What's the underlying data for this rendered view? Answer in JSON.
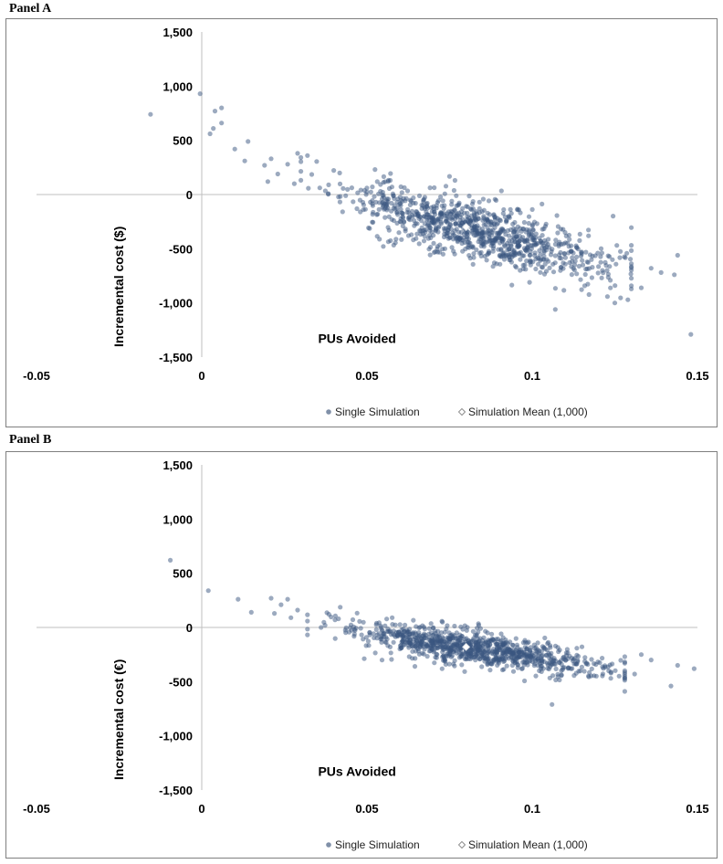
{
  "panels": [
    {
      "label": "Panel A"
    },
    {
      "label": "Panel B"
    }
  ],
  "colors": {
    "point": "#3a5680",
    "point_opacity": 0.5,
    "mean_marker": "#ffffff",
    "axis": "#bfbfbf",
    "legend_point": "#8090a8"
  },
  "chart_data": [
    {
      "type": "scatter",
      "title": "Panel A",
      "xlabel": "PUs Avoided",
      "ylabel": "Incremental cost ($)",
      "xlim": [
        -0.05,
        0.15
      ],
      "ylim": [
        -1500,
        1500
      ],
      "x_ticks": [
        -0.05,
        0,
        0.05,
        0.1,
        0.15
      ],
      "x_tick_labels": [
        "-0.05",
        "0",
        "0.05",
        "0.1",
        "0.15"
      ],
      "y_ticks": [
        1500,
        1000,
        500,
        0,
        -500,
        -1000,
        -1500
      ],
      "y_tick_labels": [
        "1,500",
        "1,000",
        "500",
        "0",
        "-500",
        "-1,000",
        "-1,500"
      ],
      "legend": [
        "Single Simulation",
        "Simulation Mean (1,000)"
      ],
      "legend_position": "bottom",
      "n_simulations": 1000,
      "mean": {
        "x": 0.08,
        "y": -300
      },
      "cloud": {
        "slope": -8200,
        "intercept": 356,
        "x_center": 0.083,
        "x_sd": 0.02,
        "x_min": 0.03,
        "x_max": 0.13,
        "noise_sd": 135,
        "seed": 11
      },
      "outliers": [
        {
          "x": -0.0155,
          "y": 740
        },
        {
          "x": -0.0005,
          "y": 930
        },
        {
          "x": 0.0025,
          "y": 560
        },
        {
          "x": 0.004,
          "y": 770
        },
        {
          "x": 0.006,
          "y": 800
        },
        {
          "x": 0.006,
          "y": 660
        },
        {
          "x": 0.0035,
          "y": 610
        },
        {
          "x": 0.01,
          "y": 420
        },
        {
          "x": 0.014,
          "y": 490
        },
        {
          "x": 0.013,
          "y": 310
        },
        {
          "x": 0.019,
          "y": 270
        },
        {
          "x": 0.021,
          "y": 330
        },
        {
          "x": 0.023,
          "y": 190
        },
        {
          "x": 0.02,
          "y": 120
        },
        {
          "x": 0.026,
          "y": 280
        },
        {
          "x": 0.028,
          "y": 100
        },
        {
          "x": 0.029,
          "y": 380
        },
        {
          "x": 0.032,
          "y": 360
        },
        {
          "x": 0.107,
          "y": -1060
        },
        {
          "x": 0.133,
          "y": -860
        },
        {
          "x": 0.136,
          "y": -680
        },
        {
          "x": 0.139,
          "y": -720
        },
        {
          "x": 0.143,
          "y": -740
        },
        {
          "x": 0.144,
          "y": -560
        },
        {
          "x": 0.148,
          "y": -1290
        },
        {
          "x": 0.125,
          "y": -1000
        }
      ]
    },
    {
      "type": "scatter",
      "title": "Panel B",
      "xlabel": "PUs Avoided",
      "ylabel": "Incremental cost (€)",
      "xlim": [
        -0.05,
        0.15
      ],
      "ylim": [
        -1500,
        1500
      ],
      "x_ticks": [
        -0.05,
        0,
        0.05,
        0.1,
        0.15
      ],
      "x_tick_labels": [
        "-0.05",
        "0",
        "0.05",
        "0.1",
        "0.15"
      ],
      "y_ticks": [
        1500,
        1000,
        500,
        0,
        -500,
        -1000,
        -1500
      ],
      "y_tick_labels": [
        "1,500",
        "1,000",
        "500",
        "0",
        "-500",
        "-1,000",
        "-1,500"
      ],
      "legend": [
        "Single Simulation",
        "Simulation Mean (1,000)"
      ],
      "legend_position": "bottom",
      "n_simulations": 1000,
      "mean": {
        "x": 0.08,
        "y": -180
      },
      "cloud": {
        "slope": -4600,
        "intercept": 188,
        "x_center": 0.083,
        "x_sd": 0.019,
        "x_min": 0.032,
        "x_max": 0.128,
        "noise_sd": 75,
        "seed": 29
      },
      "outliers": [
        {
          "x": -0.0095,
          "y": 620
        },
        {
          "x": 0.002,
          "y": 340
        },
        {
          "x": 0.011,
          "y": 260
        },
        {
          "x": 0.015,
          "y": 140
        },
        {
          "x": 0.021,
          "y": 270
        },
        {
          "x": 0.022,
          "y": 130
        },
        {
          "x": 0.024,
          "y": 210
        },
        {
          "x": 0.026,
          "y": 260
        },
        {
          "x": 0.027,
          "y": 90
        },
        {
          "x": 0.029,
          "y": 160
        },
        {
          "x": 0.106,
          "y": -710
        },
        {
          "x": 0.128,
          "y": -590
        },
        {
          "x": 0.133,
          "y": -250
        },
        {
          "x": 0.136,
          "y": -300
        },
        {
          "x": 0.142,
          "y": -540
        },
        {
          "x": 0.144,
          "y": -350
        },
        {
          "x": 0.149,
          "y": -380
        },
        {
          "x": 0.131,
          "y": -430
        }
      ]
    }
  ]
}
